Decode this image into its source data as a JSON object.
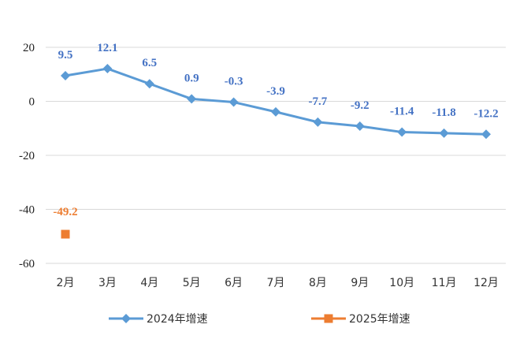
{
  "chart_data": {
    "type": "line",
    "categories": [
      "2月",
      "3月",
      "4月",
      "5月",
      "6月",
      "7月",
      "8月",
      "9月",
      "10月",
      "11月",
      "12月"
    ],
    "series": [
      {
        "name": "2024年增速",
        "color": "#5B9BD5",
        "marker": "diamond",
        "values": [
          9.5,
          12.1,
          6.5,
          0.9,
          -0.3,
          -3.9,
          -7.7,
          -9.2,
          -11.4,
          -11.8,
          -12.2
        ],
        "labels": [
          "9.5",
          "12.1",
          "6.5",
          "0.9",
          "-0.3",
          "-3.9",
          "-7.7",
          "-9.2",
          "-11.4",
          "-11.8",
          "-12.2"
        ],
        "label_color": "#4472C4"
      },
      {
        "name": "2025年增速",
        "color": "#ED7D31",
        "marker": "square",
        "values": [
          -49.2,
          null,
          null,
          null,
          null,
          null,
          null,
          null,
          null,
          null,
          null
        ],
        "labels": [
          "-49.2",
          "",
          "",
          "",
          "",
          "",
          "",
          "",
          "",
          "",
          ""
        ],
        "label_color": "#ED7D31"
      }
    ],
    "yticks": [
      20,
      0,
      -20,
      -40,
      -60
    ],
    "ylim": [
      -60,
      20
    ],
    "grid": true,
    "legend_position": "bottom"
  }
}
